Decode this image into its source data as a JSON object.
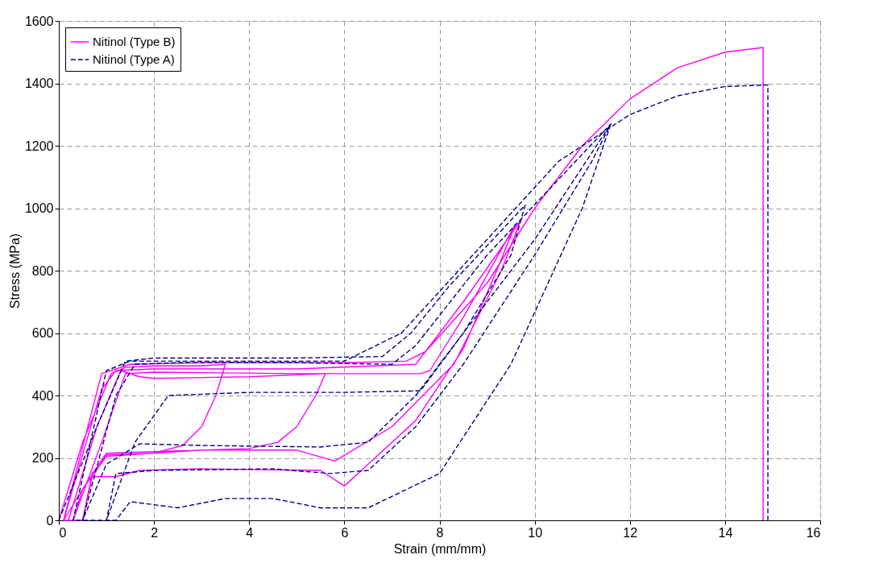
{
  "chart_data": {
    "type": "line",
    "xlabel": "Strain (mm/mm)",
    "ylabel": "Stress (MPa)",
    "xlim": [
      0,
      16
    ],
    "ylim": [
      0,
      1600
    ],
    "xticks": [
      0,
      2,
      4,
      6,
      8,
      10,
      12,
      14,
      16
    ],
    "yticks": [
      0,
      200,
      400,
      600,
      800,
      1000,
      1200,
      1400,
      1600
    ],
    "grid": true,
    "legend": "top left",
    "series": [
      {
        "name": "Nitinol (Type B)",
        "color": "#ff00ff",
        "line_style": "solid",
        "x": [
          0,
          0.5,
          1.1,
          1.4,
          2,
          3,
          3.5,
          3.3,
          3.0,
          2.6,
          2,
          1,
          0.7,
          0.5,
          0.2,
          0.8,
          1.3,
          1.7,
          2,
          4,
          5.6,
          5.4,
          5,
          4.6,
          4,
          2,
          1,
          0.5,
          0.1,
          0.9,
          1.2,
          2,
          5,
          7.5,
          8.5,
          9.7,
          9.3,
          8.3,
          7,
          5.8,
          5,
          3,
          1,
          0.5,
          0.3,
          0.9,
          1.4,
          2,
          5,
          7.6,
          7.8,
          8.5,
          9.6,
          9.2,
          8.5,
          7.5,
          6.5,
          6,
          5.5,
          3,
          1.7,
          1.2,
          0.7,
          0.5,
          0.1,
          0.9,
          1.5,
          3,
          6,
          7.3,
          7.7,
          9,
          10,
          11,
          12,
          13,
          14,
          14.8,
          14.8
        ],
        "values": [
          0,
          250,
          470,
          490,
          495,
          495,
          500,
          400,
          300,
          240,
          215,
          210,
          150,
          0,
          0,
          300,
          480,
          460,
          455,
          460,
          470,
          400,
          300,
          250,
          230,
          220,
          215,
          100,
          0,
          420,
          480,
          485,
          485,
          500,
          700,
          960,
          800,
          500,
          300,
          190,
          225,
          225,
          205,
          100,
          0,
          250,
          470,
          475,
          470,
          470,
          480,
          650,
          950,
          800,
          550,
          320,
          180,
          110,
          160,
          165,
          160,
          140,
          140,
          0,
          0,
          470,
          500,
          505,
          505,
          510,
          540,
          760,
          1000,
          1200,
          1350,
          1450,
          1500,
          1515,
          0
        ]
      },
      {
        "name": "Nitinol (Type A)",
        "color": "#000080",
        "line_style": "dashed",
        "x": [
          0,
          0.8,
          1.4,
          2,
          5,
          6.8,
          7.4,
          8.2,
          9.8,
          9.5,
          8.5,
          7.5,
          6.5,
          5.5,
          3,
          1.7,
          1.0,
          0.5,
          1.2,
          1.6,
          2.5,
          5,
          7,
          7.5,
          9,
          11.6,
          11.2,
          10,
          8.5,
          7.5,
          6.5,
          5.7,
          4.5,
          2,
          1.2,
          1.0,
          1.6,
          2.3,
          4,
          6,
          7.6,
          8.5,
          10,
          11.6,
          11,
          9.5,
          8,
          6.5,
          5.5,
          4.5,
          3.5,
          2.5,
          1.5,
          1.2,
          0.3,
          1.0,
          1.5,
          3,
          6,
          7.2,
          9,
          10.5,
          12,
          13,
          14,
          14.9,
          14.9
        ],
        "values": [
          0,
          300,
          510,
          520,
          520,
          525,
          600,
          750,
          1010,
          850,
          600,
          400,
          250,
          235,
          240,
          245,
          180,
          0,
          400,
          500,
          505,
          505,
          500,
          560,
          850,
          1270,
          1150,
          850,
          500,
          300,
          160,
          150,
          165,
          160,
          150,
          0,
          250,
          400,
          410,
          410,
          415,
          600,
          900,
          1270,
          1000,
          500,
          150,
          40,
          40,
          70,
          70,
          40,
          60,
          0,
          0,
          480,
          510,
          510,
          510,
          600,
          900,
          1150,
          1300,
          1360,
          1390,
          1395,
          0
        ]
      }
    ]
  }
}
